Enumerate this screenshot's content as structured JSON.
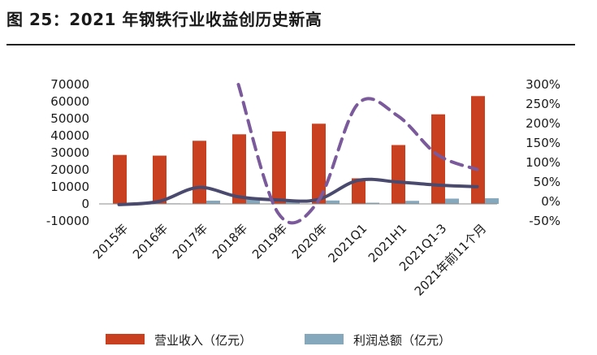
{
  "figure": {
    "title": "图 25：2021 年钢铁行业收益创历史新高"
  },
  "chart_data": {
    "type": "bar",
    "categories": [
      "2015年",
      "2016年",
      "2017年",
      "2018年",
      "2019年",
      "2020年",
      "2021Q1",
      "2021H1",
      "2021Q1-3",
      "2021年前11个月"
    ],
    "left_axis": {
      "ylim": [
        -10000,
        70000
      ],
      "ticks": [
        -10000,
        0,
        10000,
        20000,
        30000,
        40000,
        50000,
        60000,
        70000
      ],
      "tick_labels": [
        "-10000",
        "0",
        "10000",
        "20000",
        "30000",
        "40000",
        "50000",
        "60000",
        "70000"
      ]
    },
    "right_axis": {
      "ylim": [
        -0.5,
        3.0
      ],
      "ticks": [
        -0.5,
        0,
        0.5,
        1.0,
        1.5,
        2.0,
        2.5,
        3.0
      ],
      "tick_labels": [
        "-50%",
        "0%",
        "50%",
        "100%",
        "150%",
        "200%",
        "250%",
        "300%"
      ]
    },
    "series": [
      {
        "name": "营业收入（亿元）",
        "kind": "bar",
        "axis": "left",
        "color": "#c8401f",
        "values": [
          28700,
          28300,
          37000,
          40800,
          42500,
          47000,
          15000,
          34500,
          52500,
          63200
        ]
      },
      {
        "name": "利润总额（亿元）",
        "kind": "bar",
        "axis": "left",
        "color": "#85a8bd",
        "values": [
          -600,
          300,
          1900,
          2800,
          1900,
          2000,
          700,
          1800,
          3100,
          3300
        ]
      },
      {
        "kind": "line",
        "axis": "right",
        "style": "solid",
        "color": "#4a4a6e",
        "values": [
          -0.08,
          0.0,
          0.36,
          0.12,
          0.04,
          0.05,
          0.54,
          0.5,
          0.42,
          0.38
        ]
      },
      {
        "kind": "line",
        "axis": "right",
        "style": "dashed",
        "color": "#7b5a9b",
        "values": [
          null,
          null,
          null,
          3.0,
          -0.3,
          0.0,
          2.5,
          2.2,
          1.2,
          0.82
        ]
      }
    ],
    "legend": {
      "placement": "bottom",
      "items": [
        "营业收入（亿元）",
        "利润总额（亿元）"
      ]
    },
    "grid": false
  }
}
